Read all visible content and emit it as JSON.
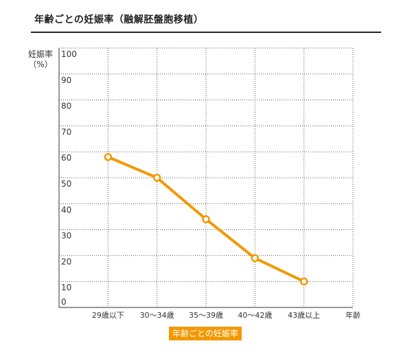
{
  "page": {
    "title": "年齢ごとの妊娠率（融解胚盤胞移植）"
  },
  "colors": {
    "line": "#f39800",
    "marker_fill": "#ffffff",
    "grid": "#555555",
    "text": "#333333"
  },
  "chart_data": {
    "type": "line",
    "title": "年齢ごとの妊娠率（融解胚盤胞移植）",
    "ylabel": [
      "妊娠率",
      "（%）"
    ],
    "xlabel": "年齢",
    "categories": [
      "29歳以下",
      "30〜34歳",
      "35〜39歳",
      "40〜42歳",
      "43歳以上"
    ],
    "ylim": [
      0,
      100
    ],
    "yticks": [
      0,
      10,
      20,
      30,
      40,
      50,
      60,
      70,
      80,
      90,
      100
    ],
    "grid": true,
    "legend_position": "bottom-center",
    "series": [
      {
        "name": "年齢ごとの妊娠率",
        "values": [
          58,
          50,
          34,
          19,
          10
        ]
      }
    ]
  }
}
